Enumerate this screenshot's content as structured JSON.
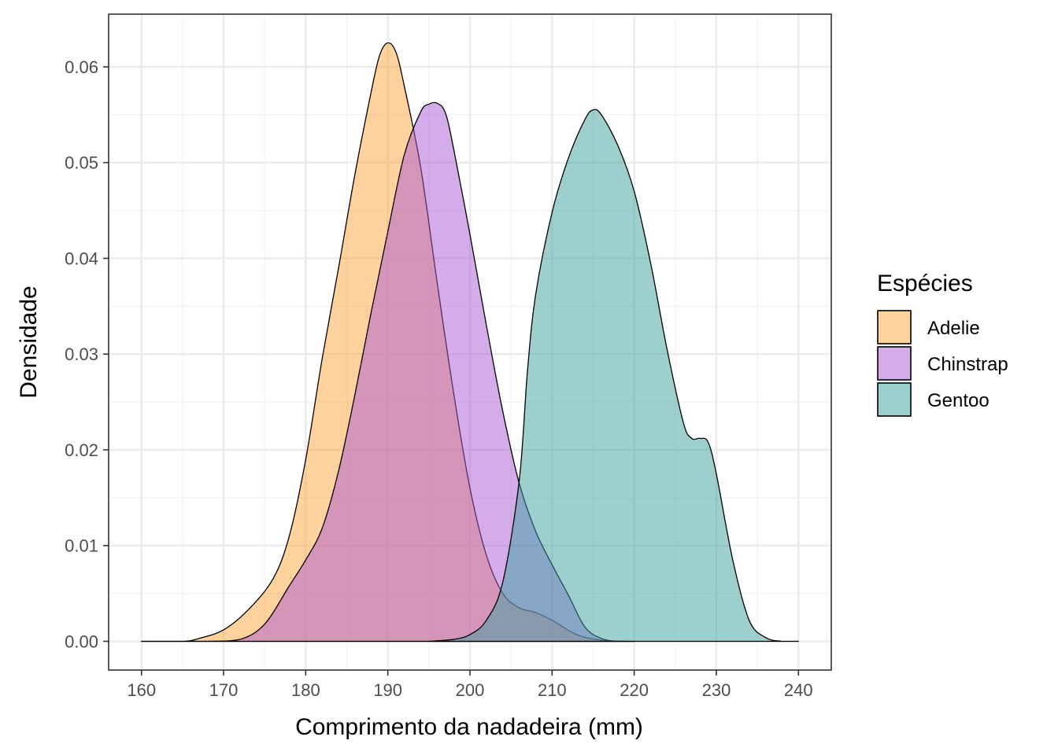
{
  "chart_data": {
    "type": "area",
    "subtype": "density",
    "xlabel": "Comprimento da nadadeira (mm)",
    "ylabel": "Densidade",
    "xlim": [
      156,
      244
    ],
    "ylim": [
      -0.003,
      0.0655
    ],
    "x_ticks": [
      160,
      170,
      180,
      190,
      200,
      210,
      220,
      230,
      240
    ],
    "x_tick_labels": [
      "160",
      "170",
      "180",
      "190",
      "200",
      "210",
      "220",
      "230",
      "240"
    ],
    "y_ticks": [
      0.0,
      0.01,
      0.02,
      0.03,
      0.04,
      0.05,
      0.06
    ],
    "y_tick_labels": [
      "0.00",
      "0.01",
      "0.02",
      "0.03",
      "0.04",
      "0.05",
      "0.06"
    ],
    "grid": true,
    "legend": {
      "title": "Espécies",
      "position": "right",
      "items": [
        "Adelie",
        "Chinstrap",
        "Gentoo"
      ]
    },
    "series": [
      {
        "name": "Adelie",
        "color": "#FDA43C",
        "x": [
          160,
          165,
          167,
          170,
          173,
          176,
          178,
          180,
          182,
          184,
          186,
          188,
          189,
          190,
          191,
          192,
          194,
          196,
          198,
          200,
          202,
          204,
          206,
          208,
          210,
          213,
          216,
          219,
          220
        ],
        "values": [
          0.0,
          0.0,
          0.0003,
          0.0012,
          0.0033,
          0.0065,
          0.011,
          0.019,
          0.0295,
          0.039,
          0.0488,
          0.0575,
          0.0612,
          0.0625,
          0.0615,
          0.058,
          0.0495,
          0.0375,
          0.026,
          0.016,
          0.009,
          0.005,
          0.0035,
          0.003,
          0.0022,
          0.0007,
          0.0001,
          0.0,
          0.0
        ]
      },
      {
        "name": "Chinstrap",
        "color": "#A95AD6",
        "x": [
          160,
          168,
          172,
          175,
          178,
          180,
          182,
          184,
          186,
          188,
          190,
          192,
          194,
          195,
          196,
          197,
          198,
          200,
          202,
          204,
          206,
          208,
          210,
          212,
          214,
          216,
          218,
          220
        ],
        "values": [
          0.0,
          0.0,
          0.0002,
          0.0018,
          0.0058,
          0.0085,
          0.0118,
          0.0178,
          0.0258,
          0.0345,
          0.0428,
          0.0508,
          0.0553,
          0.0561,
          0.0562,
          0.0552,
          0.0515,
          0.0425,
          0.033,
          0.024,
          0.0165,
          0.0115,
          0.008,
          0.0048,
          0.0015,
          0.0003,
          0.0,
          0.0
        ]
      },
      {
        "name": "Gentoo",
        "color": "#3CA0A0",
        "x": [
          195,
          198,
          200,
          202,
          204,
          206,
          207,
          208,
          210,
          212,
          214,
          215,
          216,
          218,
          220,
          222,
          224,
          226,
          227,
          228,
          229,
          230,
          232,
          234,
          236,
          238,
          240
        ],
        "values": [
          0.0,
          0.0002,
          0.0007,
          0.0022,
          0.0062,
          0.0168,
          0.0282,
          0.0362,
          0.0448,
          0.0505,
          0.0545,
          0.0555,
          0.055,
          0.0518,
          0.047,
          0.0395,
          0.0305,
          0.0228,
          0.0212,
          0.0212,
          0.0208,
          0.0175,
          0.0085,
          0.0022,
          0.0004,
          0.0,
          0.0
        ]
      }
    ]
  }
}
